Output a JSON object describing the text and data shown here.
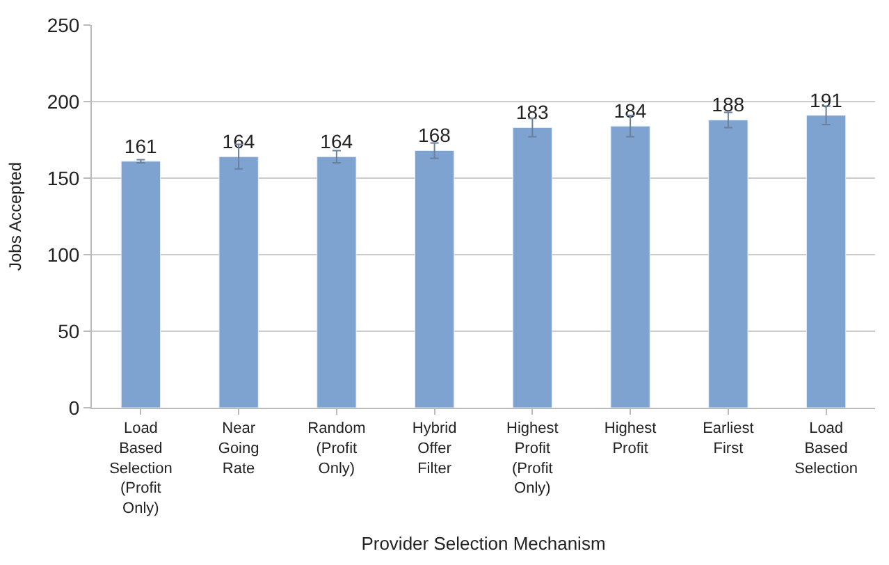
{
  "chart_data": {
    "type": "bar",
    "xlabel": "Provider Selection Mechanism",
    "ylabel": "Jobs Accepted",
    "categories": [
      "Load Based Selection (Profit Only)",
      "Near Going Rate",
      "Random (Profit Only)",
      "Hybrid Offer Filter",
      "Highest Profit (Profit Only)",
      "Highest Profit",
      "Earliest First",
      "Load Based Selection"
    ],
    "values": [
      161,
      164,
      164,
      168,
      183,
      184,
      188,
      191
    ],
    "errors": [
      1,
      8,
      4,
      5,
      6,
      7,
      5,
      6
    ],
    "color": "#7fa3d0",
    "data_labels": true,
    "grid": "y",
    "ylim": [
      0,
      250
    ],
    "yticks": [
      0,
      50,
      100,
      150,
      200,
      250
    ]
  }
}
